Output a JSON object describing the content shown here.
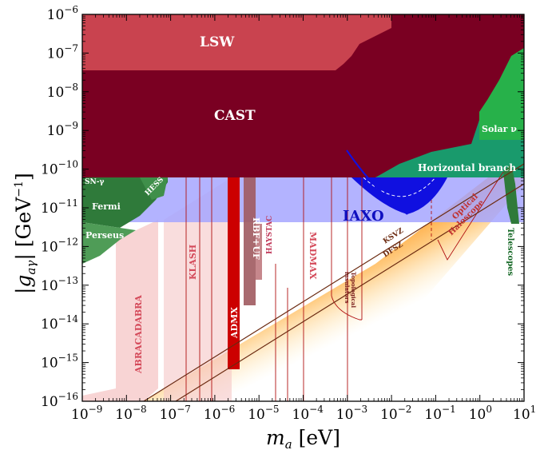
{
  "chart_data": {
    "type": "area",
    "title": "",
    "xlabel": "m_a [eV]",
    "ylabel": "|g_aγ| [GeV^-1]",
    "xscale": "log",
    "yscale": "log",
    "xlim": [
      1e-09,
      10
    ],
    "ylim": [
      1e-16,
      1e-06
    ],
    "grid": false,
    "x_tick_labels": [
      "10^-9",
      "10^-8",
      "10^-7",
      "10^-6",
      "10^-5",
      "10^-4",
      "10^-3",
      "10^-2",
      "10^-1",
      "10^0",
      "10^1"
    ],
    "y_tick_labels": [
      "10^-16",
      "10^-15",
      "10^-14",
      "10^-13",
      "10^-12",
      "10^-11",
      "10^-10",
      "10^-9",
      "10^-8",
      "10^-7",
      "10^-6"
    ],
    "regions": [
      {
        "label": "LSW",
        "kind": "excluded",
        "color": "#c9434f",
        "g_lower": 2.5e-08,
        "ma_range": [
          1e-09,
          0.01
        ]
      },
      {
        "label": "CAST",
        "kind": "excluded",
        "color": "#800020",
        "g_lower": 6.6e-11,
        "ma_range": [
          1e-09,
          0.3
        ]
      },
      {
        "label": "Solar ν",
        "kind": "excluded",
        "color": "#2db34a"
      },
      {
        "label": "Horizontal branch",
        "kind": "excluded",
        "color": "#1a9e6e",
        "g_lower": 6.6e-11
      },
      {
        "label": "HESS",
        "kind": "excluded",
        "color": "#3f8f4a"
      },
      {
        "label": "SN-γ",
        "kind": "excluded",
        "color": "#3f8f4a"
      },
      {
        "label": "Fermi",
        "kind": "excluded",
        "color": "#2f7a3a"
      },
      {
        "label": "Perseus",
        "kind": "excluded",
        "color": "#4d9955"
      },
      {
        "label": "Telescopes",
        "kind": "excluded",
        "color": "#2f7a3a",
        "ma_range": [
          3,
          8
        ]
      },
      {
        "label": "IAXO",
        "kind": "projected",
        "color": "#8080ff",
        "g_reach": 4e-12
      },
      {
        "label": "BabyIAXO region",
        "kind": "projected",
        "color": "#0000ff",
        "ma_range": [
          0.001,
          0.3
        ]
      },
      {
        "label": "ADMX",
        "kind": "excluded",
        "color": "#cc0000",
        "ma_range": [
          1.9e-06,
          3.3e-06
        ],
        "g_lower": 6e-16
      },
      {
        "label": "RBF+UF",
        "kind": "excluded",
        "color": "#a05a5f",
        "ma_range": [
          4.5e-06,
          1.6e-05
        ]
      },
      {
        "label": "HAYSTAC",
        "kind": "projected",
        "color": "#c0395a"
      },
      {
        "label": "ABRACADABRA",
        "kind": "projected",
        "color": "#d44a5a"
      },
      {
        "label": "KLASH",
        "kind": "projected",
        "color": "#d44a5a"
      },
      {
        "label": "MADMAX",
        "kind": "projected",
        "color": "#d44a5a"
      },
      {
        "label": "Topological insulators",
        "kind": "projected",
        "color": "#a0302f"
      },
      {
        "label": "Optical Haloscope",
        "kind": "projected",
        "color": "#c0302f"
      }
    ],
    "model_lines": [
      {
        "label": "KSVZ",
        "color": "#6b2a10"
      },
      {
        "label": "DFSZ",
        "color": "#6b2a10"
      }
    ],
    "qcd_band_color": "#ff9a20"
  },
  "labels": {
    "x_axis": "m",
    "x_axis_sub": "a",
    "x_axis_unit": "[eV]",
    "y_axis_main": "|g",
    "y_axis_sub": "aγ",
    "y_axis_unit": "| [GeV",
    "y_axis_exp": "−1",
    "y_axis_close": "]",
    "lsw": "LSW",
    "cast": "CAST",
    "solar": "Solar ν",
    "hb": "Horizontal branch",
    "hess": "HESS",
    "sn": "SN-γ",
    "fermi": "Fermi",
    "perseus": "Perseus",
    "telescopes": "Telescopes",
    "iaxo": "IAXO",
    "admx": "ADMX",
    "rbf": "RBF+UF",
    "haystac": "HAYSTAC",
    "abracadabra": "ABRACADABRA",
    "klash": "KLASH",
    "madmax": "MADMAX",
    "topo_1": "Topological",
    "topo_2": "insulators",
    "optical_1": "Optical",
    "optical_2": "Haloscope",
    "ksvz": "KSVZ",
    "dfsz": "DFSZ"
  }
}
